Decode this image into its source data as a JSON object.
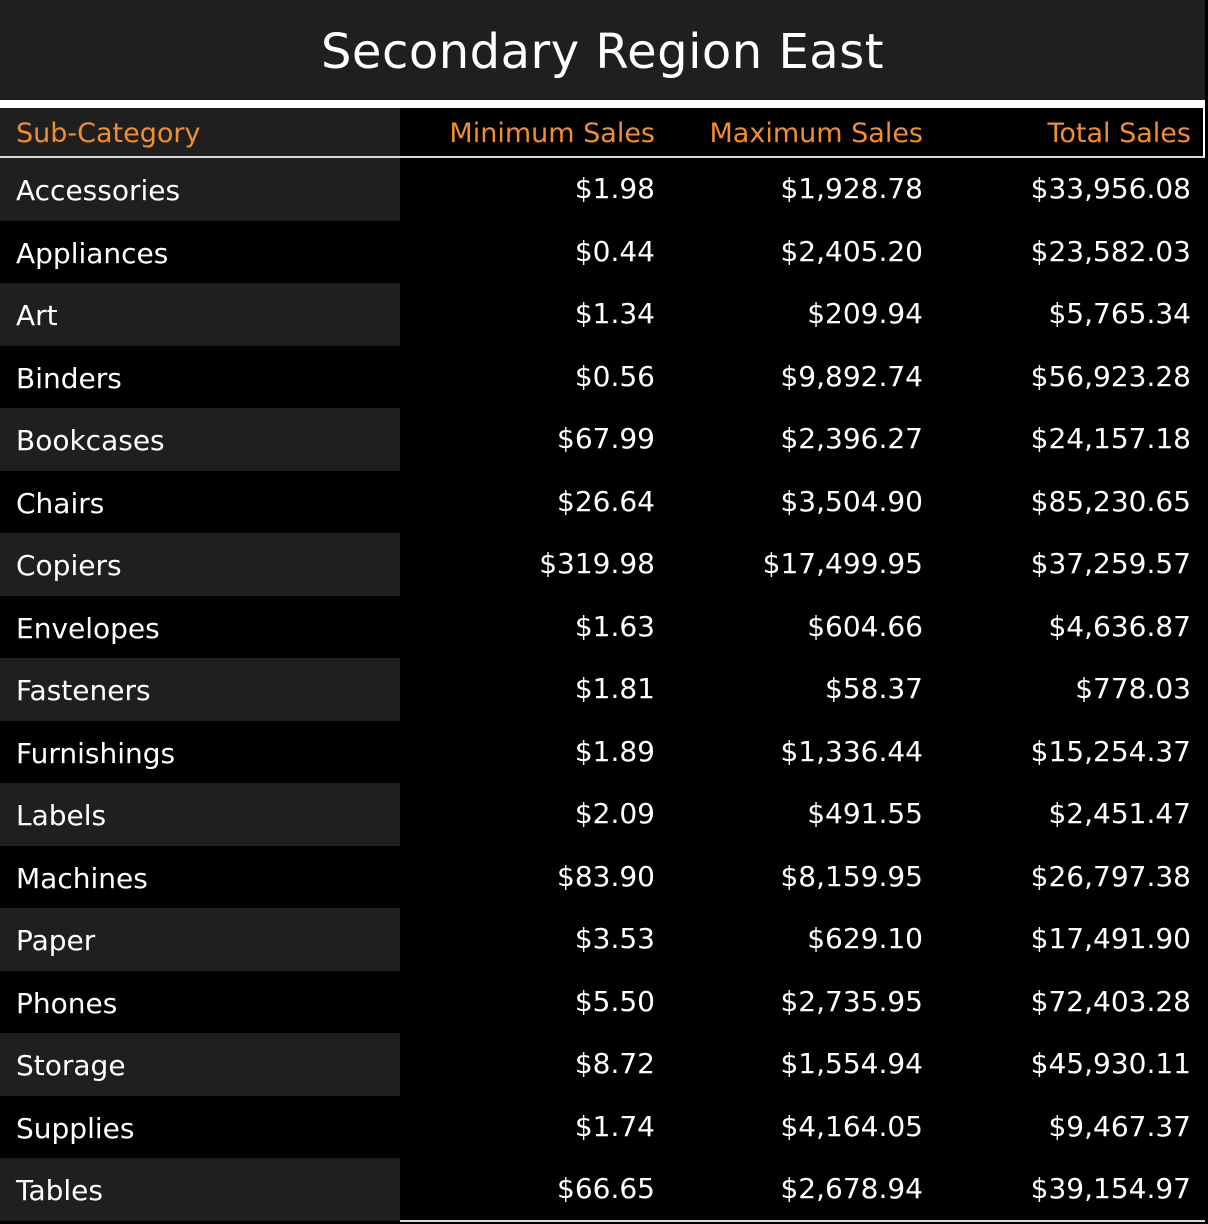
{
  "title": "Secondary Region East",
  "colors": {
    "header_text": "#f28e2c",
    "band": "#1f1f1f",
    "background": "#000000",
    "text": "#ffffff"
  },
  "chart_data": {
    "type": "table",
    "title": "Secondary Region East",
    "columns": [
      "Sub-Category",
      "Minimum Sales",
      "Maximum Sales",
      "Total Sales"
    ],
    "rows": [
      [
        "Accessories",
        "$1.98",
        "$1,928.78",
        "$33,956.08"
      ],
      [
        "Appliances",
        "$0.44",
        "$2,405.20",
        "$23,582.03"
      ],
      [
        "Art",
        "$1.34",
        "$209.94",
        "$5,765.34"
      ],
      [
        "Binders",
        "$0.56",
        "$9,892.74",
        "$56,923.28"
      ],
      [
        "Bookcases",
        "$67.99",
        "$2,396.27",
        "$24,157.18"
      ],
      [
        "Chairs",
        "$26.64",
        "$3,504.90",
        "$85,230.65"
      ],
      [
        "Copiers",
        "$319.98",
        "$17,499.95",
        "$37,259.57"
      ],
      [
        "Envelopes",
        "$1.63",
        "$604.66",
        "$4,636.87"
      ],
      [
        "Fasteners",
        "$1.81",
        "$58.37",
        "$778.03"
      ],
      [
        "Furnishings",
        "$1.89",
        "$1,336.44",
        "$15,254.37"
      ],
      [
        "Labels",
        "$2.09",
        "$491.55",
        "$2,451.47"
      ],
      [
        "Machines",
        "$83.90",
        "$8,159.95",
        "$26,797.38"
      ],
      [
        "Paper",
        "$3.53",
        "$629.10",
        "$17,491.90"
      ],
      [
        "Phones",
        "$5.50",
        "$2,735.95",
        "$72,403.28"
      ],
      [
        "Storage",
        "$8.72",
        "$1,554.94",
        "$45,930.11"
      ],
      [
        "Supplies",
        "$1.74",
        "$4,164.05",
        "$9,467.37"
      ],
      [
        "Tables",
        "$66.65",
        "$2,678.94",
        "$39,154.97"
      ]
    ]
  }
}
